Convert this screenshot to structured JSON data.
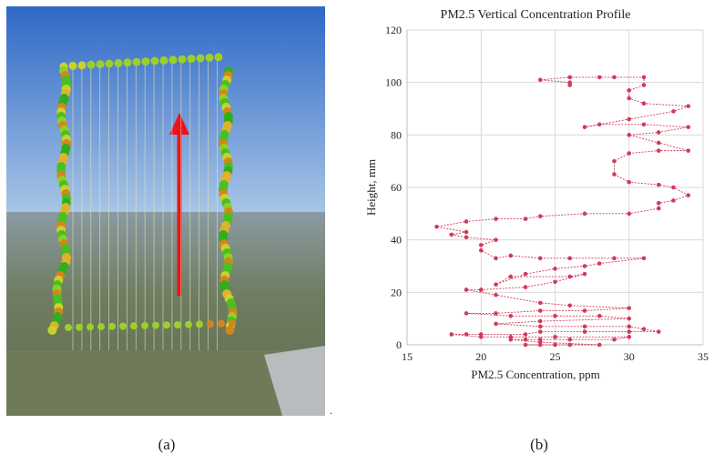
{
  "panel_labels": [
    "(a)",
    "(b)"
  ],
  "image_suffix": ".",
  "chart_data": {
    "type": "line",
    "title": "PM2.5 Vertical Concentration Profile",
    "x_label": "PM2.5 Concentration, ppm",
    "y_label": "Height, mm",
    "color": "#d23a5a",
    "markers": true,
    "grid": true,
    "xlim": [
      15,
      35
    ],
    "xticks": [
      15,
      20,
      25,
      30,
      35
    ],
    "ylim": [
      0,
      120
    ],
    "yticks": [
      0,
      20,
      40,
      60,
      80,
      100,
      120
    ],
    "x": [
      24,
      23,
      25,
      26,
      28,
      24,
      22,
      23,
      24,
      26,
      29,
      30,
      25,
      22,
      20,
      18,
      19,
      20,
      23,
      24,
      27,
      30,
      32,
      31,
      30,
      27,
      24,
      21,
      24,
      30,
      28,
      25,
      22,
      19,
      21,
      24,
      27,
      30,
      26,
      24,
      21,
      19,
      20,
      23,
      25,
      27,
      26,
      22,
      21,
      23,
      25,
      27,
      28,
      31,
      29,
      26,
      24,
      22,
      21,
      20,
      20,
      21,
      19,
      18,
      19,
      17,
      19,
      21,
      23,
      24,
      27,
      30,
      32,
      32,
      33,
      34,
      33,
      32,
      30,
      29,
      29,
      30,
      32,
      34,
      32,
      30,
      32,
      34,
      31,
      28,
      27,
      30,
      33,
      34,
      31,
      30,
      30,
      31,
      31,
      29,
      28,
      26,
      24,
      26,
      26
    ],
    "y": [
      0,
      0,
      0,
      0,
      0,
      1,
      2,
      2,
      2,
      2,
      2,
      3,
      3,
      3,
      3,
      4,
      4,
      4,
      4,
      5,
      5,
      5,
      5,
      6,
      7,
      7,
      7,
      8,
      9,
      10,
      11,
      11,
      11,
      12,
      12,
      13,
      13,
      14,
      15,
      16,
      19,
      21,
      21,
      22,
      24,
      27,
      26,
      26,
      23,
      27,
      29,
      30,
      31,
      33,
      33,
      33,
      33,
      34,
      33,
      36,
      38,
      40,
      41,
      42,
      43,
      45,
      47,
      48,
      48,
      49,
      50,
      50,
      52,
      54,
      55,
      57,
      60,
      61,
      62,
      65,
      70,
      73,
      74,
      74,
      77,
      80,
      81,
      83,
      84,
      84,
      83,
      86,
      89,
      91,
      92,
      94,
      97,
      99,
      102,
      102,
      102,
      102,
      101,
      100,
      99
    ]
  }
}
